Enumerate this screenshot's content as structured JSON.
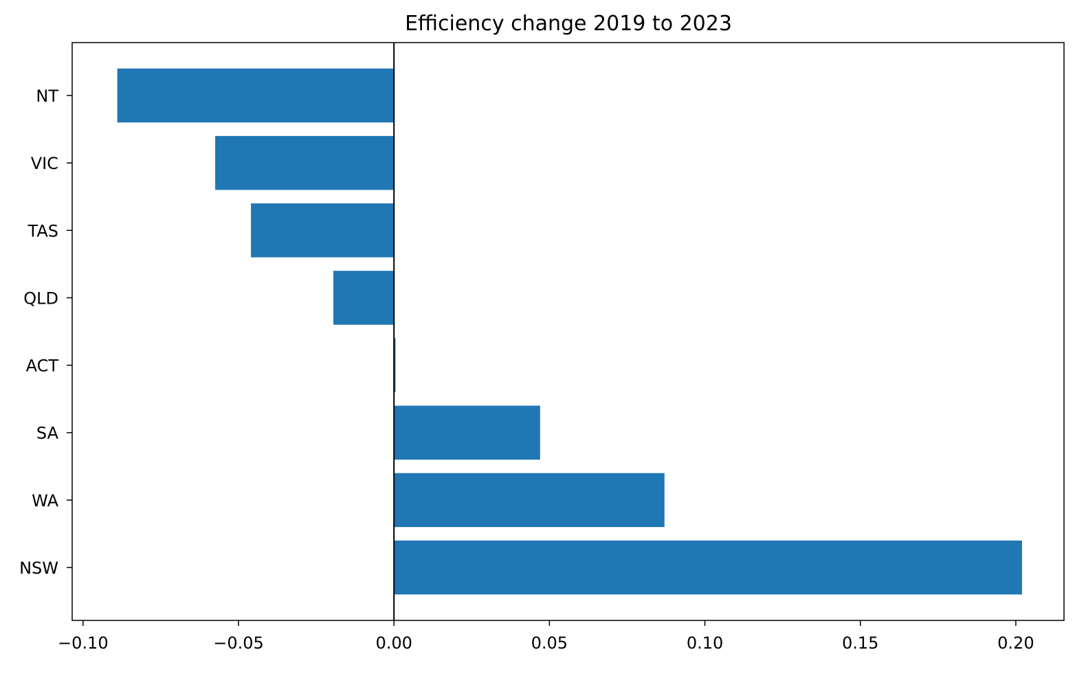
{
  "chart_data": {
    "type": "bar",
    "orientation": "horizontal",
    "title": "Efficiency change 2019 to 2023",
    "xlabel": "",
    "ylabel": "",
    "categories": [
      "NT",
      "VIC",
      "TAS",
      "QLD",
      "ACT",
      "SA",
      "WA",
      "NSW"
    ],
    "values": [
      -0.089,
      -0.0575,
      -0.046,
      -0.0195,
      0.0005,
      0.047,
      0.087,
      0.202
    ],
    "xlim": [
      -0.1035,
      0.2155
    ],
    "xticks": [
      -0.1,
      -0.05,
      0.0,
      0.05,
      0.1,
      0.15,
      0.2
    ],
    "xtick_labels": [
      "−0.10",
      "−0.05",
      "0.00",
      "0.05",
      "0.10",
      "0.15",
      "0.20"
    ],
    "zero_line": true,
    "grid": false,
    "legend": "none",
    "colors": {
      "bar": "#1f77b4",
      "axis": "#000000",
      "background": "#ffffff"
    }
  }
}
